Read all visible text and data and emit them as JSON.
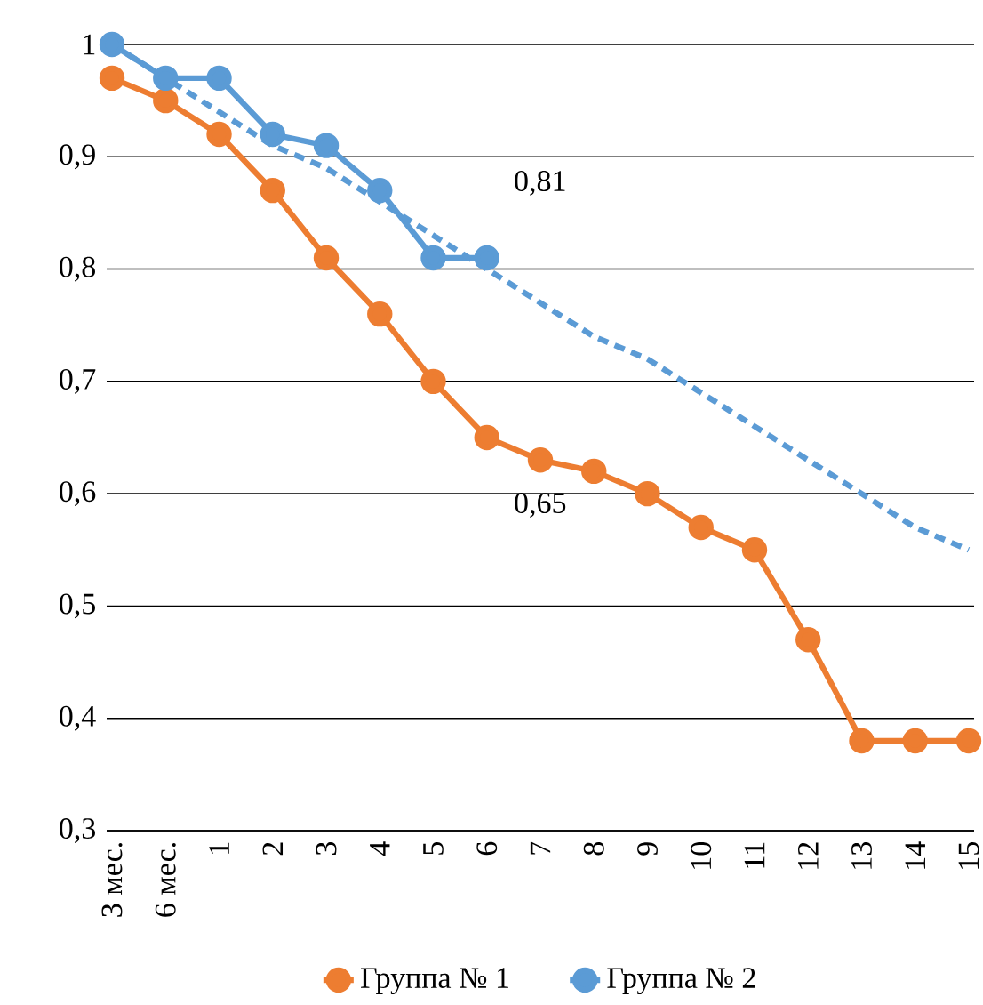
{
  "chart_data": {
    "type": "line",
    "categories": [
      "3 мес.",
      "6 мес.",
      "1",
      "2",
      "3",
      "4",
      "5",
      "6",
      "7",
      "8",
      "9",
      "10",
      "11",
      "12",
      "13",
      "14",
      "15"
    ],
    "series": [
      {
        "name": "Группа № 1",
        "color": "#ed7d31",
        "values": [
          0.97,
          0.95,
          0.92,
          0.87,
          0.81,
          0.76,
          0.7,
          0.65,
          0.63,
          0.62,
          0.6,
          0.57,
          0.55,
          0.47,
          0.38,
          0.38,
          0.38
        ]
      },
      {
        "name": "Группа № 2",
        "color": "#5b9bd5",
        "values": [
          1.0,
          0.97,
          0.97,
          0.92,
          0.91,
          0.87,
          0.81,
          0.81,
          null,
          null,
          null,
          null,
          null,
          null,
          null,
          null,
          null
        ]
      },
      {
        "type": "line",
        "color": "#5b9bd5",
        "line_style": "dashed",
        "marker": "none",
        "values": [
          1.0,
          0.97,
          0.94,
          0.91,
          0.89,
          0.86,
          0.83,
          0.8,
          0.77,
          0.74,
          0.72,
          0.69,
          0.66,
          0.63,
          0.6,
          0.57,
          0.55
        ]
      }
    ],
    "ylim": [
      0.3,
      1.0
    ],
    "yticks": [
      {
        "value": 0.3,
        "label": "0,3"
      },
      {
        "value": 0.4,
        "label": "0,4"
      },
      {
        "value": 0.5,
        "label": "0,5"
      },
      {
        "value": 0.6,
        "label": "0,6"
      },
      {
        "value": 0.7,
        "label": "0,7"
      },
      {
        "value": 0.8,
        "label": "0,8"
      },
      {
        "value": 0.9,
        "label": "0,9"
      },
      {
        "value": 1.0,
        "label": "1"
      }
    ],
    "grid": "y",
    "legend": "bottom",
    "marker": "circle",
    "line_style": "solid",
    "annotations": [
      {
        "text": "0,81",
        "x": "6",
        "y": 0.81
      },
      {
        "text": "0,65",
        "x": "6",
        "y": 0.65
      }
    ]
  }
}
